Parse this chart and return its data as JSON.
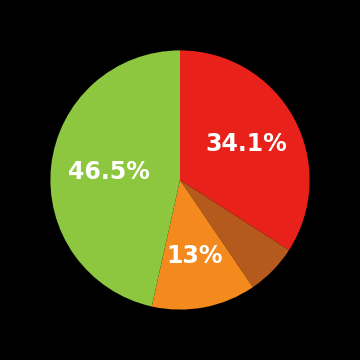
{
  "slices": [
    34.1,
    6.4,
    13.0,
    46.5
  ],
  "colors": [
    "#e8211a",
    "#b55a1c",
    "#f48a1e",
    "#8dc63f"
  ],
  "labels": [
    "34.1%",
    "",
    "13%",
    "46.5%"
  ],
  "label_radii": [
    0.58,
    0,
    0.6,
    0.55
  ],
  "background_color": "#000000",
  "text_color": "#ffffff",
  "label_fontsize": 17,
  "startangle": 90,
  "counterclock": false
}
